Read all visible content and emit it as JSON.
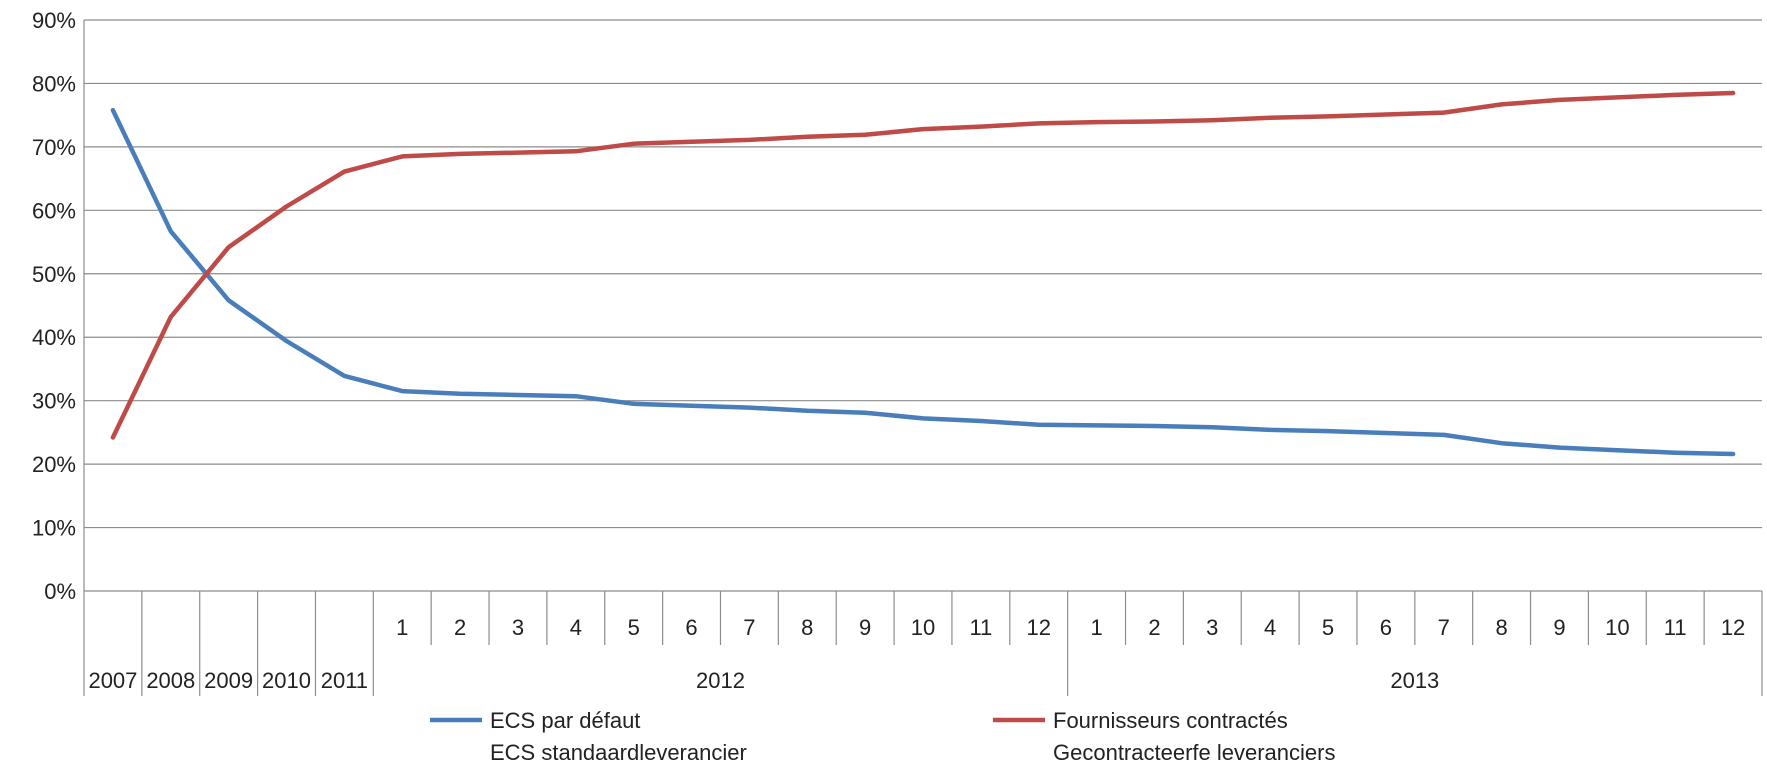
{
  "chart_data": {
    "type": "line",
    "ylim": [
      0,
      0.9
    ],
    "y_ticks": [
      "0%",
      "10%",
      "20%",
      "30%",
      "40%",
      "50%",
      "60%",
      "70%",
      "80%",
      "90%"
    ],
    "grid": true,
    "legend_position": "bottom",
    "x": [
      "2007",
      "2008",
      "2009",
      "2010",
      "2011",
      "1",
      "2",
      "3",
      "4",
      "5",
      "6",
      "7",
      "8",
      "9",
      "10",
      "11",
      "12",
      "1",
      "2",
      "3",
      "4",
      "5",
      "6",
      "7",
      "8",
      "9",
      "10",
      "11",
      "12"
    ],
    "year_groups": [
      {
        "label": "2012",
        "start": 5,
        "end": 16
      },
      {
        "label": "2013",
        "start": 17,
        "end": 28
      }
    ],
    "series": [
      {
        "name": "ECS par défaut",
        "name_line2": "ECS standaardleverancier",
        "color": "#4a7ebb",
        "values": [
          0.758,
          0.567,
          0.458,
          0.394,
          0.339,
          0.315,
          0.311,
          0.309,
          0.307,
          0.295,
          0.292,
          0.289,
          0.284,
          0.281,
          0.272,
          0.268,
          0.262,
          0.261,
          0.26,
          0.258,
          0.254,
          0.252,
          0.249,
          0.246,
          0.233,
          0.226,
          0.222,
          0.218,
          0.216
        ]
      },
      {
        "name": "Fournisseurs contractés",
        "name_line2": "Gecontracteerfe leveranciers",
        "color": "#be4b48",
        "values": [
          0.242,
          0.432,
          0.542,
          0.606,
          0.661,
          0.685,
          0.689,
          0.691,
          0.693,
          0.705,
          0.708,
          0.711,
          0.716,
          0.719,
          0.728,
          0.732,
          0.737,
          0.739,
          0.74,
          0.742,
          0.746,
          0.748,
          0.751,
          0.754,
          0.767,
          0.774,
          0.778,
          0.782,
          0.785
        ]
      }
    ]
  }
}
